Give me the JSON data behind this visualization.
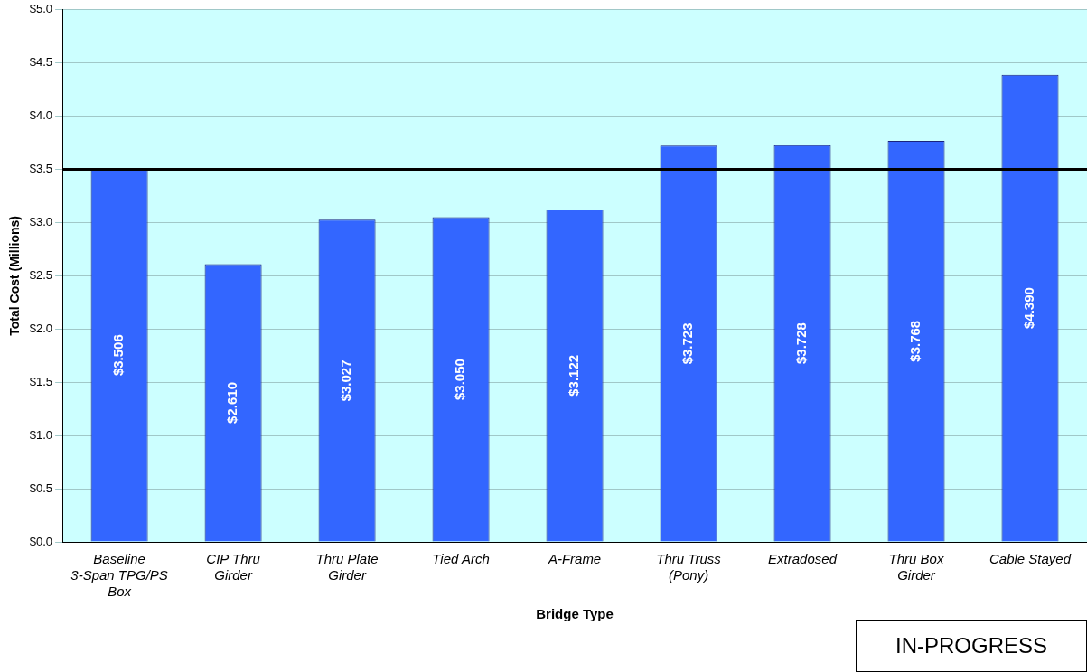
{
  "chart_data": {
    "type": "bar",
    "xlabel": "Bridge Type",
    "ylabel": "Total Cost (Millions)",
    "categories": [
      "Baseline 3-Span TPG/PS Box",
      "CIP Thru Girder",
      "Thru Plate Girder",
      "Tied Arch",
      "A-Frame",
      "Thru Truss (Pony)",
      "Extradosed",
      "Thru Box Girder",
      "Cable Stayed"
    ],
    "values": [
      3.506,
      2.61,
      3.027,
      3.05,
      3.122,
      3.723,
      3.728,
      3.768,
      4.39
    ],
    "value_labels": [
      "$3.506",
      "$2.610",
      "$3.027",
      "$3.050",
      "$3.122",
      "$3.723",
      "$3.728",
      "$3.768",
      "$4.390"
    ],
    "color": "#3366ff",
    "ylim": [
      0,
      5
    ],
    "yticks": [
      {
        "value": 0,
        "label": "$0.0"
      },
      {
        "value": 0.5,
        "label": "$0.5"
      },
      {
        "value": 1,
        "label": "$1.0"
      },
      {
        "value": 1.5,
        "label": "$1.5"
      },
      {
        "value": 2,
        "label": "$2.0"
      },
      {
        "value": 2.5,
        "label": "$2.5"
      },
      {
        "value": 3,
        "label": "$3.0"
      },
      {
        "value": 3.5,
        "label": "$3.5"
      },
      {
        "value": 4,
        "label": "$4.0"
      },
      {
        "value": 4.5,
        "label": "$4.5"
      },
      {
        "value": 5,
        "label": "$5.0"
      }
    ],
    "grid": "y",
    "legend": false,
    "ref_lines": [
      {
        "axis": "y",
        "value": 3.5,
        "color": "#000000"
      }
    ],
    "annotations": [
      "IN-PROGRESS"
    ]
  }
}
